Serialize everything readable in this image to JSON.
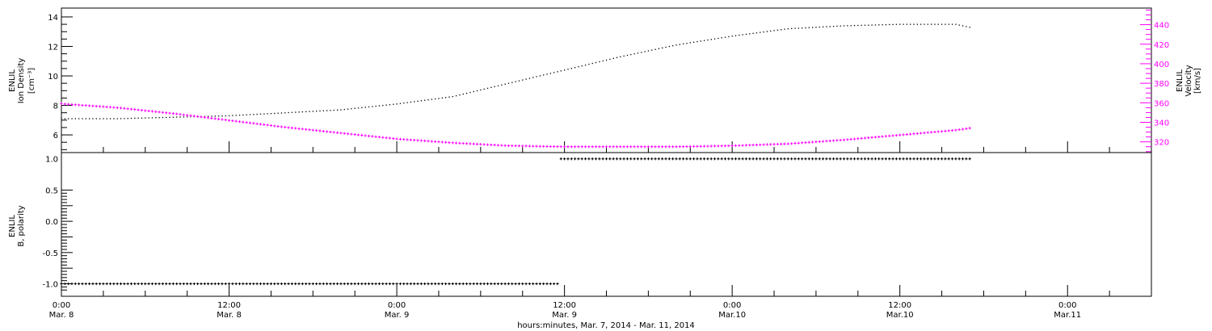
{
  "colors": {
    "density": "#000000",
    "velocity": "#ff00ff",
    "polarity": "#000000",
    "axes": "#000000",
    "background": "#ffffff"
  },
  "chart_data": [
    {
      "panel": "top",
      "type": "scatter",
      "x_unit": "hours since Mar. 8 0:00",
      "xlim": [
        0,
        78
      ],
      "grid": false,
      "ylabel_lines": [
        "ENLIL",
        "Ion Density",
        "[cm⁻³]"
      ],
      "ylim": [
        4.8,
        14.6
      ],
      "yticks": [
        "6",
        "8",
        "10",
        "12",
        "14"
      ],
      "y2label_lines": [
        "ENLIL",
        "Velocity",
        "[km/s]"
      ],
      "y2lim": [
        309,
        457
      ],
      "y2ticks": [
        "320",
        "340",
        "360",
        "380",
        "400",
        "420",
        "440"
      ],
      "series": [
        {
          "axis": "left",
          "x": [
            0,
            4,
            8,
            12,
            16,
            20,
            24,
            28,
            32,
            36,
            40,
            44,
            48,
            52,
            56,
            60,
            64,
            65
          ],
          "values": [
            7.1,
            7.1,
            7.2,
            7.3,
            7.5,
            7.7,
            8.1,
            8.6,
            9.5,
            10.4,
            11.3,
            12.1,
            12.7,
            13.2,
            13.4,
            13.5,
            13.5,
            13.3
          ]
        },
        {
          "axis": "right",
          "x": [
            0,
            4,
            8,
            12,
            16,
            20,
            24,
            28,
            32,
            36,
            40,
            44,
            48,
            52,
            56,
            60,
            64,
            65
          ],
          "values": [
            359,
            355,
            349,
            342,
            335,
            329,
            323,
            319,
            316,
            315,
            315,
            315,
            316,
            318,
            322,
            327,
            332,
            334
          ]
        }
      ]
    },
    {
      "panel": "bottom",
      "type": "scatter",
      "xlim": [
        0,
        78
      ],
      "grid": false,
      "ylabel_lines": [
        "ENLIL",
        "B, polarity"
      ],
      "ylim": [
        -1.2,
        1.1
      ],
      "yticks": [
        "-1.0",
        "-0.5",
        "0.0",
        "0.5",
        "1.0"
      ],
      "series": [
        {
          "x": [
            0,
            35.7,
            35.7,
            65
          ],
          "values": [
            -1.0,
            -1.0,
            1.0,
            1.0
          ]
        }
      ],
      "x_tick_labels": [
        {
          "time": "0:00",
          "date": "Mar. 8"
        },
        {
          "time": "12:00",
          "date": "Mar. 8"
        },
        {
          "time": "0:00",
          "date": "Mar. 9"
        },
        {
          "time": "12:00",
          "date": "Mar. 9"
        },
        {
          "time": "0:00",
          "date": "Mar.10"
        },
        {
          "time": "12:00",
          "date": "Mar.10"
        },
        {
          "time": "0:00",
          "date": "Mar.11"
        }
      ],
      "xlabel": "hours:minutes, Mar.  7, 2014 - Mar. 11, 2014"
    }
  ]
}
